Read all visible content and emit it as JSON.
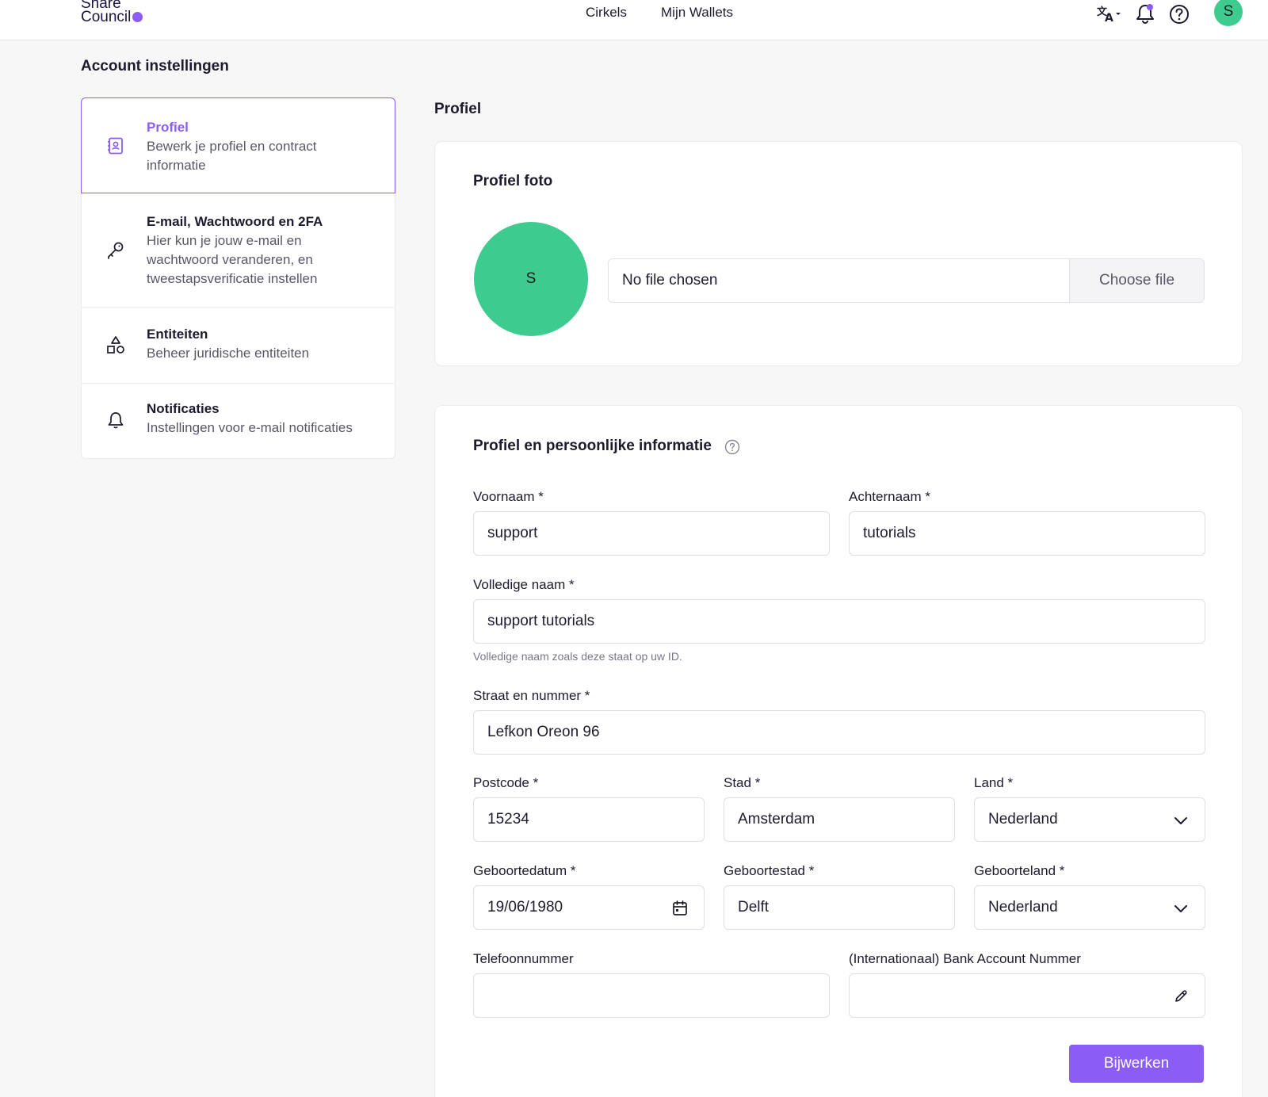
{
  "header": {
    "logo_line1": "Share",
    "logo_line2": "Council",
    "nav": [
      "Cirkels",
      "Mijn Wallets"
    ],
    "avatar_initial": "S",
    "colors": {
      "accent": "#8b5cf6",
      "avatar": "#3ecb8f"
    }
  },
  "page": {
    "title": "Account instellingen",
    "section_title": "Profiel"
  },
  "sidebar": {
    "items": [
      {
        "title": "Profiel",
        "desc_lines": [
          "Bewerk je profiel en contract",
          "informatie"
        ],
        "icon": "contact-book-icon",
        "active": true
      },
      {
        "title": "E-mail, Wachtwoord en 2FA",
        "desc_lines": [
          "Hier kun je jouw e-mail en",
          "wachtwoord veranderen, en",
          "tweestapsverificatie instellen"
        ],
        "icon": "key-icon",
        "active": false
      },
      {
        "title": "Entiteiten",
        "desc_lines": [
          "Beheer juridische entiteiten"
        ],
        "icon": "shapes-icon",
        "active": false
      },
      {
        "title": "Notificaties",
        "desc_lines": [
          "Instellingen voor e-mail notificaties"
        ],
        "icon": "bell-icon",
        "active": false
      }
    ]
  },
  "photo_card": {
    "title": "Profiel foto",
    "avatar_initial": "S",
    "file_status": "No file chosen",
    "choose_label": "Choose file"
  },
  "info_card": {
    "title": "Profiel en persoonlijke informatie",
    "fields": {
      "voornaam": {
        "label": "Voornaam *",
        "value": "support"
      },
      "achternaam": {
        "label": "Achternaam *",
        "value": "tutorials"
      },
      "volledige_naam": {
        "label": "Volledige naam *",
        "value": "support tutorials",
        "hint": "Volledige naam zoals deze staat op uw ID."
      },
      "straat": {
        "label": "Straat en nummer *",
        "value": "Lefkon Oreon 96"
      },
      "postcode": {
        "label": "Postcode *",
        "value": "15234"
      },
      "stad": {
        "label": "Stad *",
        "value": "Amsterdam"
      },
      "land": {
        "label": "Land *",
        "value": "Nederland"
      },
      "geboortedatum": {
        "label": "Geboortedatum *",
        "value": "19/06/1980"
      },
      "geboortestad": {
        "label": "Geboortestad *",
        "value": "Delft"
      },
      "geboorteland": {
        "label": "Geboorteland *",
        "value": "Nederland"
      },
      "telefoon": {
        "label": "Telefoonnummer",
        "value": ""
      },
      "iban": {
        "label": "(Internationaal) Bank Account Nummer",
        "value": ""
      }
    },
    "submit_label": "Bijwerken"
  }
}
